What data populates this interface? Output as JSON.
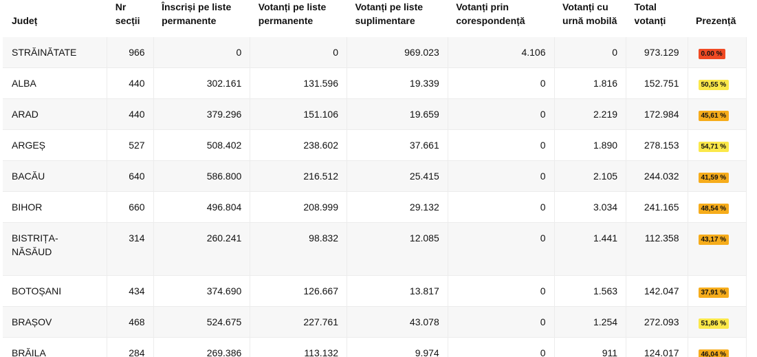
{
  "table": {
    "headers": {
      "judet": "Județ",
      "nr_sectii": [
        "Nr",
        "secții"
      ],
      "inscrisi": [
        "Înscriși pe liste",
        "permanente"
      ],
      "votanti_permanente": [
        "Votanți pe liste",
        "permanente"
      ],
      "votanti_suplimentare": [
        "Votanți pe liste",
        "suplimentare"
      ],
      "votanti_corespondenta": [
        "Votanți prin",
        "corespondență"
      ],
      "votanti_urna_mobila": [
        "Votanți cu",
        "urnă mobilă"
      ],
      "total_votanti": [
        "Total",
        "votanți"
      ],
      "prezenta": "Prezență"
    },
    "rows": [
      {
        "judet": "STRĂINĂTATE",
        "nr_sectii": "966",
        "inscrisi": "0",
        "votanti_permanente": "0",
        "votanti_suplimentare": "969.023",
        "votanti_corespondenta": "4.106",
        "votanti_urna_mobila": "0",
        "total_votanti": "973.129",
        "prezenta": "0.00 %",
        "prezenta_level": "red"
      },
      {
        "judet": "ALBA",
        "nr_sectii": "440",
        "inscrisi": "302.161",
        "votanti_permanente": "131.596",
        "votanti_suplimentare": "19.339",
        "votanti_corespondenta": "0",
        "votanti_urna_mobila": "1.816",
        "total_votanti": "152.751",
        "prezenta": "50,55 %",
        "prezenta_level": "yellow"
      },
      {
        "judet": "ARAD",
        "nr_sectii": "440",
        "inscrisi": "379.296",
        "votanti_permanente": "151.106",
        "votanti_suplimentare": "19.659",
        "votanti_corespondenta": "0",
        "votanti_urna_mobila": "2.219",
        "total_votanti": "172.984",
        "prezenta": "45,61 %",
        "prezenta_level": "orange"
      },
      {
        "judet": "ARGEȘ",
        "nr_sectii": "527",
        "inscrisi": "508.402",
        "votanti_permanente": "238.602",
        "votanti_suplimentare": "37.661",
        "votanti_corespondenta": "0",
        "votanti_urna_mobila": "1.890",
        "total_votanti": "278.153",
        "prezenta": "54,71 %",
        "prezenta_level": "yellow"
      },
      {
        "judet": "BACĂU",
        "nr_sectii": "640",
        "inscrisi": "586.800",
        "votanti_permanente": "216.512",
        "votanti_suplimentare": "25.415",
        "votanti_corespondenta": "0",
        "votanti_urna_mobila": "2.105",
        "total_votanti": "244.032",
        "prezenta": "41,59 %",
        "prezenta_level": "orange"
      },
      {
        "judet": "BIHOR",
        "nr_sectii": "660",
        "inscrisi": "496.804",
        "votanti_permanente": "208.999",
        "votanti_suplimentare": "29.132",
        "votanti_corespondenta": "0",
        "votanti_urna_mobila": "3.034",
        "total_votanti": "241.165",
        "prezenta": "48,54 %",
        "prezenta_level": "orange"
      },
      {
        "judet": "BISTRIȚA-NĂSĂUD",
        "judet_lines": [
          "BISTRIȚA-",
          "NĂSĂUD"
        ],
        "nr_sectii": "314",
        "inscrisi": "260.241",
        "votanti_permanente": "98.832",
        "votanti_suplimentare": "12.085",
        "votanti_corespondenta": "0",
        "votanti_urna_mobila": "1.441",
        "total_votanti": "112.358",
        "prezenta": "43,17 %",
        "prezenta_level": "orange"
      },
      {
        "judet": "BOTOȘANI",
        "nr_sectii": "434",
        "inscrisi": "374.690",
        "votanti_permanente": "126.667",
        "votanti_suplimentare": "13.817",
        "votanti_corespondenta": "0",
        "votanti_urna_mobila": "1.563",
        "total_votanti": "142.047",
        "prezenta": "37,91 %",
        "prezenta_level": "orange"
      },
      {
        "judet": "BRAȘOV",
        "nr_sectii": "468",
        "inscrisi": "524.675",
        "votanti_permanente": "227.761",
        "votanti_suplimentare": "43.078",
        "votanti_corespondenta": "0",
        "votanti_urna_mobila": "1.254",
        "total_votanti": "272.093",
        "prezenta": "51,86 %",
        "prezenta_level": "yellow"
      },
      {
        "judet": "BRĂILA",
        "nr_sectii": "284",
        "inscrisi": "269.386",
        "votanti_permanente": "113.132",
        "votanti_suplimentare": "9.974",
        "votanti_corespondenta": "0",
        "votanti_urna_mobila": "911",
        "total_votanti": "124.017",
        "prezenta": "46,04 %",
        "prezenta_level": "orange"
      }
    ]
  },
  "colors": {
    "red": "#f04a24",
    "yellow": "#fbe84a",
    "orange": "#f6ac1b"
  }
}
